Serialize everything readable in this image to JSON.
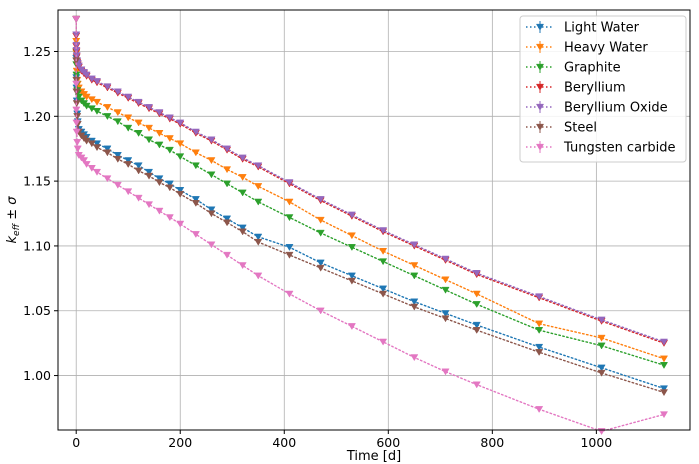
{
  "chart_data": {
    "type": "line",
    "xlabel": "Time [d]",
    "ylabel": "k_eff ± σ",
    "xlim": [
      -35,
      1180
    ],
    "ylim": [
      0.958,
      1.282
    ],
    "xticks": [
      "0",
      "200",
      "400",
      "600",
      "800",
      "1000"
    ],
    "yticks": [
      "1.00",
      "1.05",
      "1.10",
      "1.15",
      "1.20",
      "1.25"
    ],
    "grid": true,
    "legend_position": "top-right",
    "marker": "triangle-down",
    "line_style": "dotted",
    "x": [
      0,
      0.04,
      0.25,
      0.5,
      1,
      2,
      3,
      5,
      10,
      15,
      20,
      30,
      40,
      60,
      80,
      100,
      120,
      140,
      160,
      180,
      200,
      230,
      260,
      290,
      320,
      350,
      410,
      470,
      530,
      590,
      650,
      710,
      770,
      890,
      1010,
      1130
    ],
    "series": [
      {
        "name": "Light Water",
        "color": "#1f77b4",
        "values": [
          1.275,
          1.245,
          1.23,
          1.222,
          1.212,
          1.202,
          1.196,
          1.19,
          1.188,
          1.186,
          1.184,
          1.181,
          1.179,
          1.175,
          1.17,
          1.166,
          1.162,
          1.157,
          1.152,
          1.148,
          1.143,
          1.136,
          1.128,
          1.121,
          1.114,
          1.107,
          1.099,
          1.087,
          1.077,
          1.067,
          1.057,
          1.048,
          1.039,
          1.022,
          1.006,
          0.99
        ]
      },
      {
        "name": "Heavy Water",
        "color": "#ff7f0e",
        "values": [
          1.275,
          1.258,
          1.249,
          1.243,
          1.235,
          1.228,
          1.225,
          1.222,
          1.219,
          1.217,
          1.215,
          1.213,
          1.211,
          1.207,
          1.203,
          1.199,
          1.195,
          1.191,
          1.187,
          1.183,
          1.179,
          1.172,
          1.166,
          1.159,
          1.153,
          1.146,
          1.134,
          1.12,
          1.108,
          1.096,
          1.085,
          1.074,
          1.063,
          1.04,
          1.029,
          1.013
        ]
      },
      {
        "name": "Graphite",
        "color": "#2ca02c",
        "values": [
          1.275,
          1.25,
          1.24,
          1.232,
          1.225,
          1.22,
          1.218,
          1.215,
          1.212,
          1.21,
          1.208,
          1.206,
          1.204,
          1.2,
          1.196,
          1.191,
          1.187,
          1.182,
          1.178,
          1.174,
          1.169,
          1.162,
          1.155,
          1.148,
          1.141,
          1.134,
          1.122,
          1.11,
          1.099,
          1.088,
          1.077,
          1.066,
          1.055,
          1.035,
          1.023,
          1.008
        ]
      },
      {
        "name": "Beryllium",
        "color": "#d62728",
        "values": [
          1.275,
          1.262,
          1.254,
          1.25,
          1.246,
          1.242,
          1.24,
          1.238,
          1.235,
          1.233,
          1.231,
          1.228,
          1.226,
          1.222,
          1.218,
          1.214,
          1.21,
          1.206,
          1.202,
          1.198,
          1.194,
          1.187,
          1.181,
          1.174,
          1.167,
          1.161,
          1.148,
          1.135,
          1.123,
          1.111,
          1.1,
          1.089,
          1.078,
          1.06,
          1.042,
          1.025
        ]
      },
      {
        "name": "Beryllium Oxide",
        "color": "#9467bd",
        "values": [
          1.275,
          1.263,
          1.255,
          1.251,
          1.247,
          1.243,
          1.241,
          1.239,
          1.236,
          1.234,
          1.232,
          1.229,
          1.227,
          1.223,
          1.219,
          1.215,
          1.211,
          1.207,
          1.203,
          1.199,
          1.195,
          1.188,
          1.182,
          1.175,
          1.168,
          1.162,
          1.149,
          1.136,
          1.124,
          1.112,
          1.101,
          1.09,
          1.079,
          1.061,
          1.043,
          1.026
        ]
      },
      {
        "name": "Steel",
        "color": "#8c564b",
        "values": [
          1.275,
          1.243,
          1.228,
          1.219,
          1.21,
          1.2,
          1.194,
          1.188,
          1.185,
          1.183,
          1.181,
          1.179,
          1.176,
          1.172,
          1.167,
          1.163,
          1.158,
          1.154,
          1.149,
          1.145,
          1.14,
          1.133,
          1.125,
          1.118,
          1.111,
          1.103,
          1.093,
          1.083,
          1.073,
          1.063,
          1.053,
          1.044,
          1.035,
          1.018,
          1.002,
          0.987
        ]
      },
      {
        "name": "Tungsten carbide",
        "color": "#e377c2",
        "values": [
          1.275,
          1.225,
          1.205,
          1.195,
          1.188,
          1.18,
          1.175,
          1.17,
          1.168,
          1.166,
          1.163,
          1.16,
          1.157,
          1.152,
          1.147,
          1.142,
          1.137,
          1.132,
          1.127,
          1.122,
          1.117,
          1.109,
          1.101,
          1.093,
          1.085,
          1.077,
          1.063,
          1.05,
          1.038,
          1.026,
          1.014,
          1.003,
          0.993,
          0.974,
          0.957,
          0.97
        ]
      }
    ]
  }
}
